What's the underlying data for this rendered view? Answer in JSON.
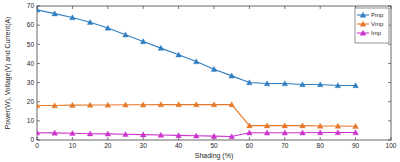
{
  "chart_data": {
    "type": "line",
    "x_label": "Shading (%)",
    "y_label": "Power(W), Voltage(V) and Current(A)",
    "x": [
      0,
      5,
      10,
      15,
      20,
      25,
      30,
      35,
      40,
      45,
      50,
      55,
      60,
      65,
      70,
      75,
      80,
      85,
      90
    ],
    "series": [
      {
        "name": "Pmp",
        "color": "#2f7fc1",
        "marker": "triangle",
        "line_style": "solid",
        "values": [
          68,
          66,
          64,
          61.5,
          58.5,
          55,
          51.5,
          48,
          44.5,
          41,
          37,
          33.5,
          30,
          29.5,
          29.5,
          29,
          29,
          28.5,
          28.5
        ]
      },
      {
        "name": "Vmp",
        "color": "#e6782a",
        "marker": "triangle",
        "line_style": "solid",
        "values": [
          18,
          18,
          18.2,
          18.3,
          18.3,
          18.4,
          18.4,
          18.5,
          18.5,
          18.5,
          18.5,
          18.5,
          7.5,
          7.5,
          7.5,
          7.5,
          7.3,
          7.3,
          7.2
        ]
      },
      {
        "name": "Imp",
        "color": "#cc33cc",
        "marker": "triangle",
        "line_style": "solid",
        "values": [
          3.8,
          3.7,
          3.5,
          3.3,
          3.2,
          3,
          2.8,
          2.6,
          2.4,
          2.2,
          2,
          1.8,
          3.8,
          3.8,
          3.8,
          3.8,
          3.9,
          3.9,
          3.9
        ]
      }
    ],
    "xlim": [
      0,
      100
    ],
    "xticks": [
      0,
      10,
      20,
      30,
      40,
      50,
      60,
      70,
      80,
      90,
      100
    ],
    "ylim": [
      0,
      70
    ],
    "yticks": [
      0,
      10,
      20,
      30,
      40,
      50,
      60,
      70
    ],
    "grid": false,
    "legend": "upper right"
  }
}
